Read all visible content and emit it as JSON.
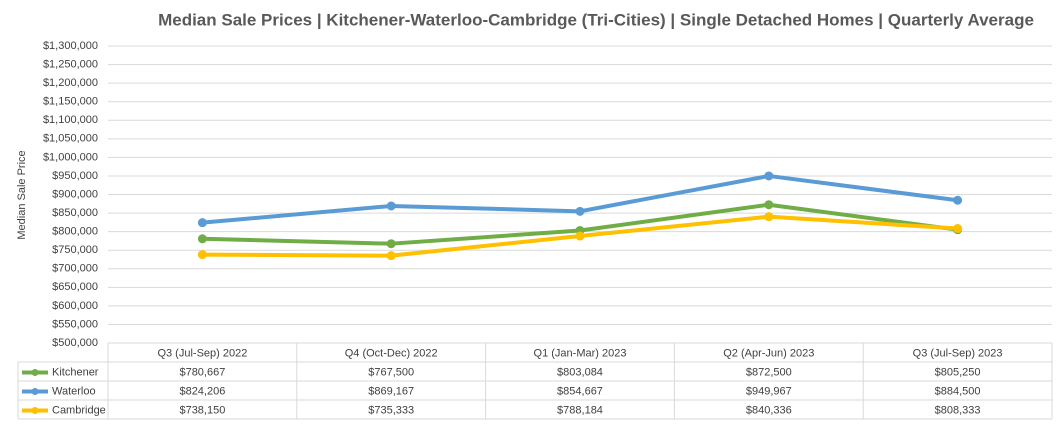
{
  "chart_data": {
    "type": "line",
    "title": "Median Sale Prices | Kitchener-Waterloo-Cambridge (Tri-Cities) | Single Detached Homes | Quarterly Average",
    "y_label": "Median Sale Price",
    "categories": [
      "Q3 (Jul-Sep) 2022",
      "Q4 (Oct-Dec) 2022",
      "Q1 (Jan-Mar) 2023",
      "Q2 (Apr-Jun) 2023",
      "Q3 (Jul-Sep) 2023"
    ],
    "series": [
      {
        "name": "Kitchener",
        "color": "#70ad47",
        "values": [
          780667,
          767500,
          803084,
          872500,
          805250
        ],
        "value_labels": [
          "$780,667",
          "$767,500",
          "$803,084",
          "$872,500",
          "$805,250"
        ]
      },
      {
        "name": "Waterloo",
        "color": "#5b9bd5",
        "values": [
          824206,
          869167,
          854667,
          949967,
          884500
        ],
        "value_labels": [
          "$824,206",
          "$869,167",
          "$854,667",
          "$949,967",
          "$884,500"
        ]
      },
      {
        "name": "Cambridge",
        "color": "#ffc000",
        "values": [
          738150,
          735333,
          788184,
          840336,
          808333
        ],
        "value_labels": [
          "$738,150",
          "$735,333",
          "$788,184",
          "$840,336",
          "$808,333"
        ]
      }
    ],
    "ylim": [
      500000,
      1300000
    ],
    "yticks": [
      {
        "value": 500000,
        "label": "$500,000"
      },
      {
        "value": 550000,
        "label": "$550,000"
      },
      {
        "value": 600000,
        "label": "$600,000"
      },
      {
        "value": 650000,
        "label": "$650,000"
      },
      {
        "value": 700000,
        "label": "$700,000"
      },
      {
        "value": 750000,
        "label": "$750,000"
      },
      {
        "value": 800000,
        "label": "$800,000"
      },
      {
        "value": 850000,
        "label": "$850,000"
      },
      {
        "value": 900000,
        "label": "$900,000"
      },
      {
        "value": 950000,
        "label": "$950,000"
      },
      {
        "value": 1000000,
        "label": "$1,000,000"
      },
      {
        "value": 1050000,
        "label": "$1,050,000"
      },
      {
        "value": 1100000,
        "label": "$1,100,000"
      },
      {
        "value": 1150000,
        "label": "$1,150,000"
      },
      {
        "value": 1200000,
        "label": "$1,200,000"
      },
      {
        "value": 1250000,
        "label": "$1,250,000"
      },
      {
        "value": 1300000,
        "label": "$1,300,000"
      }
    ],
    "grid": true
  }
}
